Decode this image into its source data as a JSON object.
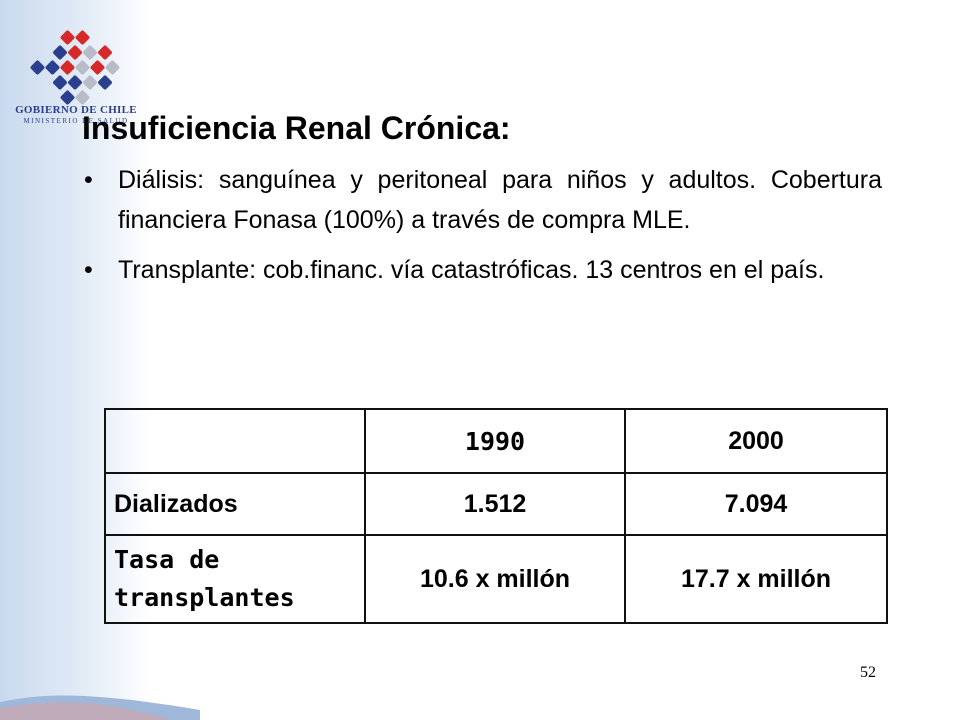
{
  "logo": {
    "line1": "GOBIERNO DE CHILE",
    "line2": "MINISTERIO DE SALUD",
    "colors": {
      "red": "#d62a2a",
      "blue": "#2b3f8f",
      "gray": "#b9bcc8"
    }
  },
  "title": "Insuficiencia Renal Crónica:",
  "bullets": [
    {
      "mark": "•",
      "text": "Diálisis: sanguínea y peritoneal para niños y adultos. Cobertura financiera Fonasa (100%) a través de compra MLE."
    },
    {
      "mark": "•",
      "text": "Transplante: cob.financ. vía catastróficas. 13 centros en el país."
    }
  ],
  "table": {
    "headers": [
      "",
      "1990",
      "2000"
    ],
    "rows": [
      {
        "label": "Dializados",
        "values": [
          "1.512",
          "7.094"
        ]
      },
      {
        "label_line1": "Tasa de",
        "label_line2": "transplantes",
        "values": [
          "10.6 x millón",
          "17.7 x millón"
        ]
      }
    ]
  },
  "page_number": "52"
}
